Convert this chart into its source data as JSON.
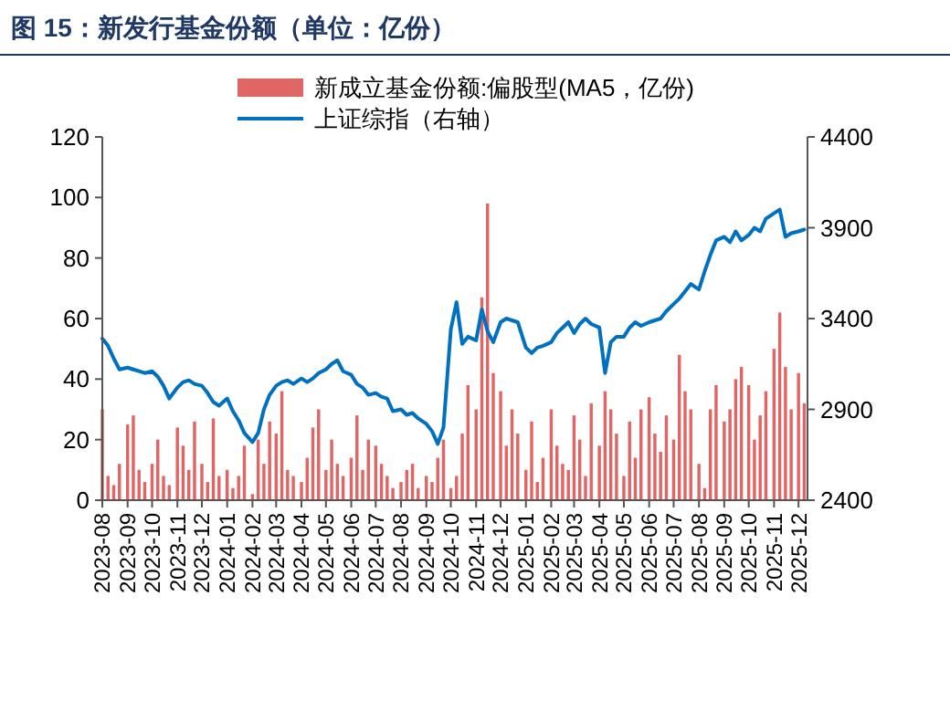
{
  "chart_data": {
    "type": "bar",
    "title": "图 15：新发行基金份额（单位：亿份）",
    "x": [
      "2023-08-01",
      "2023-08-08",
      "2023-08-15",
      "2023-08-22",
      "2023-09-01",
      "2023-09-08",
      "2023-09-15",
      "2023-09-22",
      "2023-10-01",
      "2023-10-08",
      "2023-10-15",
      "2023-10-22",
      "2023-11-01",
      "2023-11-08",
      "2023-11-15",
      "2023-11-22",
      "2023-12-01",
      "2023-12-08",
      "2023-12-15",
      "2023-12-22",
      "2024-01-01",
      "2024-01-08",
      "2024-01-15",
      "2024-01-22",
      "2024-02-01",
      "2024-02-08",
      "2024-02-15",
      "2024-02-22",
      "2024-03-01",
      "2024-03-08",
      "2024-03-15",
      "2024-03-22",
      "2024-04-01",
      "2024-04-08",
      "2024-04-15",
      "2024-04-22",
      "2024-05-01",
      "2024-05-08",
      "2024-05-15",
      "2024-05-22",
      "2024-06-01",
      "2024-06-08",
      "2024-06-15",
      "2024-06-22",
      "2024-07-01",
      "2024-07-08",
      "2024-07-15",
      "2024-07-22",
      "2024-08-01",
      "2024-08-08",
      "2024-08-15",
      "2024-08-22",
      "2024-09-01",
      "2024-09-08",
      "2024-09-15",
      "2024-09-22",
      "2024-10-01",
      "2024-10-08",
      "2024-10-15",
      "2024-10-22",
      "2024-11-01",
      "2024-11-08",
      "2024-11-15",
      "2024-11-22",
      "2024-12-01",
      "2024-12-08",
      "2024-12-15",
      "2024-12-22",
      "2025-01-01",
      "2025-01-08",
      "2025-01-15",
      "2025-01-22",
      "2025-02-01",
      "2025-02-08",
      "2025-02-15",
      "2025-02-22",
      "2025-03-01",
      "2025-03-08",
      "2025-03-15",
      "2025-03-22",
      "2025-04-01",
      "2025-04-08",
      "2025-04-15",
      "2025-04-22",
      "2025-05-01",
      "2025-05-08",
      "2025-05-15",
      "2025-05-22",
      "2025-06-01",
      "2025-06-08",
      "2025-06-15",
      "2025-06-22",
      "2025-07-01",
      "2025-07-08",
      "2025-07-15",
      "2025-07-22",
      "2025-08-01",
      "2025-08-08",
      "2025-08-15",
      "2025-08-22",
      "2025-09-01",
      "2025-09-08",
      "2025-09-15",
      "2025-09-22",
      "2025-10-01",
      "2025-10-08",
      "2025-10-15",
      "2025-10-22",
      "2025-11-01",
      "2025-11-08",
      "2025-11-15",
      "2025-11-22",
      "2025-12-01",
      "2025-12-08"
    ],
    "series": [
      {
        "name": "新成立基金份额:偏股型(MA5，亿份)",
        "color": "#e06666",
        "values": [
          30,
          8,
          5,
          12,
          25,
          28,
          10,
          6,
          12,
          20,
          8,
          5,
          24,
          18,
          10,
          26,
          12,
          6,
          27,
          8,
          10,
          4,
          8,
          18,
          2,
          20,
          12,
          26,
          22,
          36,
          10,
          8,
          6,
          14,
          24,
          30,
          10,
          20,
          12,
          8,
          14,
          28,
          10,
          20,
          18,
          12,
          8,
          4,
          6,
          10,
          12,
          4,
          8,
          6,
          14,
          20,
          4,
          8,
          22,
          38,
          30,
          67,
          98,
          42,
          36,
          18,
          30,
          22,
          10,
          26,
          6,
          14,
          30,
          18,
          12,
          10,
          28,
          20,
          8,
          32,
          18,
          36,
          30,
          22,
          8,
          26,
          14,
          30,
          34,
          22,
          16,
          28,
          20,
          48,
          36,
          30,
          12,
          4,
          30,
          38,
          26,
          30,
          40,
          44,
          38,
          20,
          28,
          36,
          50,
          62,
          44,
          30,
          42,
          32
        ]
      },
      {
        "name": "上证综指（右轴）",
        "type": "line",
        "axis": "y2",
        "color": "#0070c0",
        "values": [
          3290,
          3250,
          3180,
          3120,
          3130,
          3120,
          3110,
          3100,
          3110,
          3080,
          3030,
          2960,
          3020,
          3050,
          3060,
          3040,
          3030,
          2990,
          2940,
          2920,
          2960,
          2890,
          2840,
          2770,
          2720,
          2770,
          2900,
          2980,
          3030,
          3050,
          3060,
          3040,
          3070,
          3050,
          3070,
          3100,
          3120,
          3150,
          3170,
          3110,
          3090,
          3040,
          3020,
          2980,
          2990,
          2970,
          2960,
          2890,
          2900,
          2870,
          2880,
          2850,
          2820,
          2780,
          2710,
          2800,
          3340,
          3490,
          3260,
          3300,
          3280,
          3450,
          3330,
          3270,
          3380,
          3400,
          3390,
          3380,
          3240,
          3210,
          3240,
          3250,
          3270,
          3320,
          3350,
          3380,
          3320,
          3370,
          3400,
          3370,
          3350,
          3100,
          3270,
          3300,
          3300,
          3350,
          3380,
          3360,
          3380,
          3390,
          3400,
          3440,
          3480,
          3510,
          3550,
          3590,
          3560,
          3660,
          3750,
          3830,
          3850,
          3820,
          3880,
          3830,
          3860,
          3900,
          3880,
          3950,
          3980,
          4000,
          3850,
          3870,
          3880,
          3890
        ]
      }
    ],
    "xlim": [
      "2023-08-01",
      "2025-12-12"
    ],
    "xticks": [
      "2023-08",
      "2023-09",
      "2023-10",
      "2023-11",
      "2023-12",
      "2024-01",
      "2024-02",
      "2024-03",
      "2024-04",
      "2024-05",
      "2024-06",
      "2024-07",
      "2024-08",
      "2024-09",
      "2024-10",
      "2024-11",
      "2024-12",
      "2025-01",
      "2025-02",
      "2025-03",
      "2025-04",
      "2025-05",
      "2025-06",
      "2025-07",
      "2025-08",
      "2025-09",
      "2025-10",
      "2025-11",
      "2025-12"
    ],
    "ylim": [
      0,
      120
    ],
    "yticks": [
      0,
      20,
      40,
      60,
      80,
      100,
      120
    ],
    "y2lim": [
      2400,
      4400
    ],
    "y2ticks": [
      2400,
      2900,
      3400,
      3900,
      4400
    ],
    "legend": "top",
    "grid": false
  }
}
